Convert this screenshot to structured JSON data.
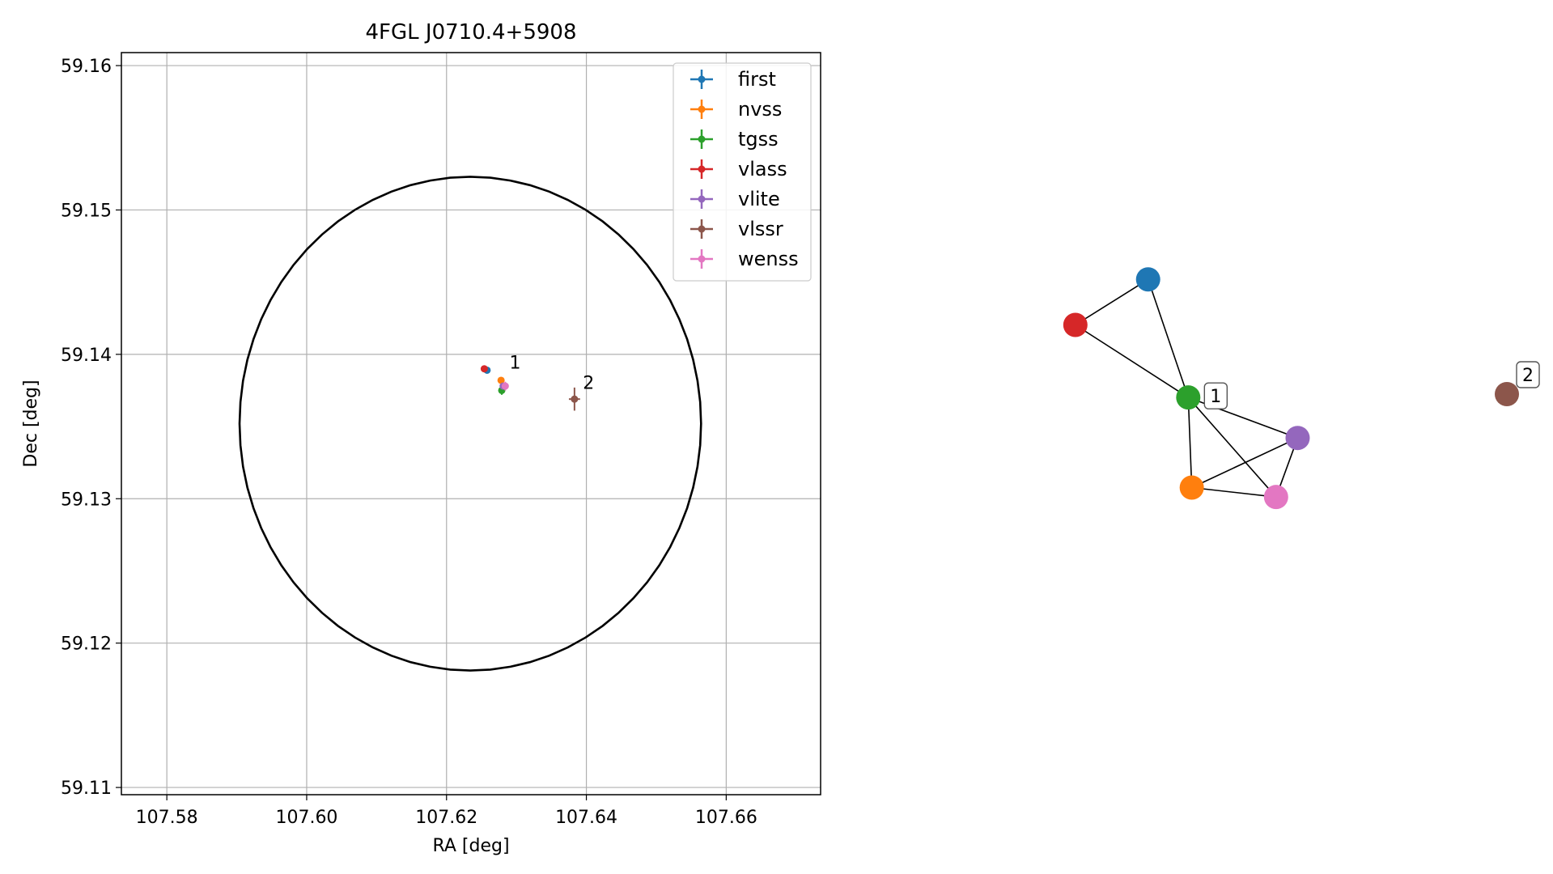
{
  "chart_data": [
    {
      "type": "scatter",
      "title": "4FGL J0710.4+5908",
      "xlabel": "RA [deg]",
      "ylabel": "Dec [deg]",
      "xlim": [
        107.5735,
        107.6735
      ],
      "ylim": [
        59.1095,
        59.1609
      ],
      "xticks": [
        "107.58",
        "107.60",
        "107.62",
        "107.64",
        "107.66"
      ],
      "yticks": [
        "59.11",
        "59.12",
        "59.13",
        "59.14",
        "59.15",
        "59.16"
      ],
      "grid": true,
      "legend_position": "upper right",
      "series": [
        {
          "name": "first",
          "color": "#1f77b4",
          "x": 107.6258,
          "y": 59.1389,
          "xerr": 0.0003,
          "yerr": 0.0001
        },
        {
          "name": "nvss",
          "color": "#ff7f0e",
          "x": 107.6278,
          "y": 59.1382,
          "xerr": 0.0002,
          "yerr": 0.0001
        },
        {
          "name": "tgss",
          "color": "#2ca02c",
          "x": 107.6279,
          "y": 59.1375,
          "xerr": 0.0002,
          "yerr": 0.0003
        },
        {
          "name": "vlass",
          "color": "#d62728",
          "x": 107.6254,
          "y": 59.139,
          "xerr": 0.0002,
          "yerr": 0.0001
        },
        {
          "name": "vlite",
          "color": "#9467bd",
          "x": 107.6281,
          "y": 59.1378,
          "xerr": 0.0002,
          "yerr": 0.0002
        },
        {
          "name": "vlssr",
          "color": "#8c564b",
          "x": 107.6383,
          "y": 59.1369,
          "xerr": 0.0008,
          "yerr": 0.0008
        },
        {
          "name": "wenss",
          "color": "#e377c2",
          "x": 107.6284,
          "y": 59.1378,
          "xerr": 0.0003,
          "yerr": 0.0003
        }
      ],
      "circle": {
        "center_x": 107.6234,
        "center_y": 59.1352,
        "radius_y": 0.0171,
        "radius_x": 0.033
      },
      "annotations": [
        {
          "text": "1",
          "x": 107.629,
          "y": 59.139
        },
        {
          "text": "2",
          "x": 107.6395,
          "y": 59.1376
        }
      ]
    },
    {
      "type": "network-graph",
      "nodes": [
        {
          "id": "first",
          "color": "#1f77b4",
          "x": 0.285,
          "y": 0.87
        },
        {
          "id": "vlass",
          "color": "#d62728",
          "x": 0.14,
          "y": 0.735
        },
        {
          "id": "tgss",
          "color": "#2ca02c",
          "x": 0.365,
          "y": 0.52
        },
        {
          "id": "vlite",
          "color": "#9467bd",
          "x": 0.583,
          "y": 0.4
        },
        {
          "id": "nvss",
          "color": "#ff7f0e",
          "x": 0.372,
          "y": 0.253
        },
        {
          "id": "wenss",
          "color": "#e377c2",
          "x": 0.54,
          "y": 0.225
        },
        {
          "id": "vlssr",
          "color": "#8c564b",
          "x": 1.0,
          "y": 0.53
        }
      ],
      "edges": [
        [
          "first",
          "vlass"
        ],
        [
          "first",
          "tgss"
        ],
        [
          "vlass",
          "tgss"
        ],
        [
          "tgss",
          "vlite"
        ],
        [
          "tgss",
          "nvss"
        ],
        [
          "tgss",
          "wenss"
        ],
        [
          "vlite",
          "nvss"
        ],
        [
          "vlite",
          "wenss"
        ],
        [
          "nvss",
          "wenss"
        ]
      ],
      "labels": [
        {
          "text": "1",
          "node": "tgss"
        },
        {
          "text": "2",
          "node": "vlssr"
        }
      ]
    }
  ]
}
